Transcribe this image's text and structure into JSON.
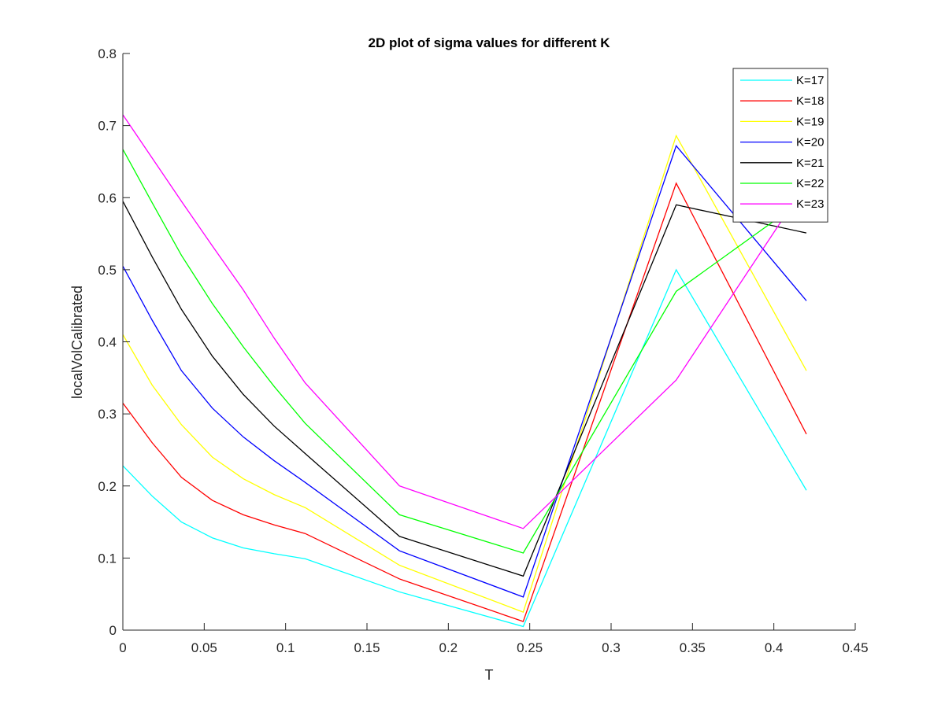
{
  "chart_data": {
    "type": "line",
    "title": "2D plot of sigma values for different K",
    "xlabel": "T",
    "ylabel": "localVolCalibrated",
    "xlim": [
      0,
      0.45
    ],
    "ylim": [
      0,
      0.8
    ],
    "xticks": [
      0,
      0.05,
      0.1,
      0.15,
      0.2,
      0.25,
      0.3,
      0.35,
      0.4,
      0.45
    ],
    "xtick_labels": [
      "0",
      "0.05",
      "0.1",
      "0.15",
      "0.2",
      "0.25",
      "0.3",
      "0.35",
      "0.4",
      "0.45"
    ],
    "yticks": [
      0,
      0.1,
      0.2,
      0.3,
      0.4,
      0.5,
      0.6,
      0.7,
      0.8
    ],
    "ytick_labels": [
      "0",
      "0.1",
      "0.2",
      "0.3",
      "0.4",
      "0.5",
      "0.6",
      "0.7",
      "0.8"
    ],
    "grid": false,
    "legend_position": "top-right",
    "x": [
      0,
      0.018,
      0.036,
      0.055,
      0.074,
      0.093,
      0.112,
      0.17,
      0.246,
      0.34,
      0.42
    ],
    "series": [
      {
        "name": "K=17",
        "color": "#00ffff",
        "values": [
          0.228,
          0.186,
          0.15,
          0.128,
          0.114,
          0.106,
          0.099,
          0.053,
          0.005,
          0.5,
          0.194
        ]
      },
      {
        "name": "K=18",
        "color": "#ff0000",
        "values": [
          0.315,
          0.26,
          0.212,
          0.18,
          0.16,
          0.146,
          0.134,
          0.071,
          0.012,
          0.62,
          0.272
        ]
      },
      {
        "name": "K=19",
        "color": "#ffff00",
        "values": [
          0.41,
          0.34,
          0.285,
          0.24,
          0.21,
          0.188,
          0.17,
          0.09,
          0.025,
          0.686,
          0.36
        ]
      },
      {
        "name": "K=20",
        "color": "#0000ff",
        "values": [
          0.505,
          0.43,
          0.36,
          0.308,
          0.268,
          0.235,
          0.205,
          0.11,
          0.046,
          0.672,
          0.457
        ]
      },
      {
        "name": "K=21",
        "color": "#000000",
        "values": [
          0.595,
          0.518,
          0.445,
          0.38,
          0.327,
          0.283,
          0.245,
          0.13,
          0.075,
          0.59,
          0.551
        ]
      },
      {
        "name": "K=22",
        "color": "#00ff00",
        "values": [
          0.667,
          0.593,
          0.52,
          0.453,
          0.393,
          0.338,
          0.287,
          0.16,
          0.107,
          0.47,
          0.6
        ]
      },
      {
        "name": "K=23",
        "color": "#ff00ff",
        "values": [
          0.715,
          0.655,
          0.595,
          0.533,
          0.472,
          0.405,
          0.343,
          0.2,
          0.141,
          0.347,
          0.62
        ]
      }
    ]
  }
}
